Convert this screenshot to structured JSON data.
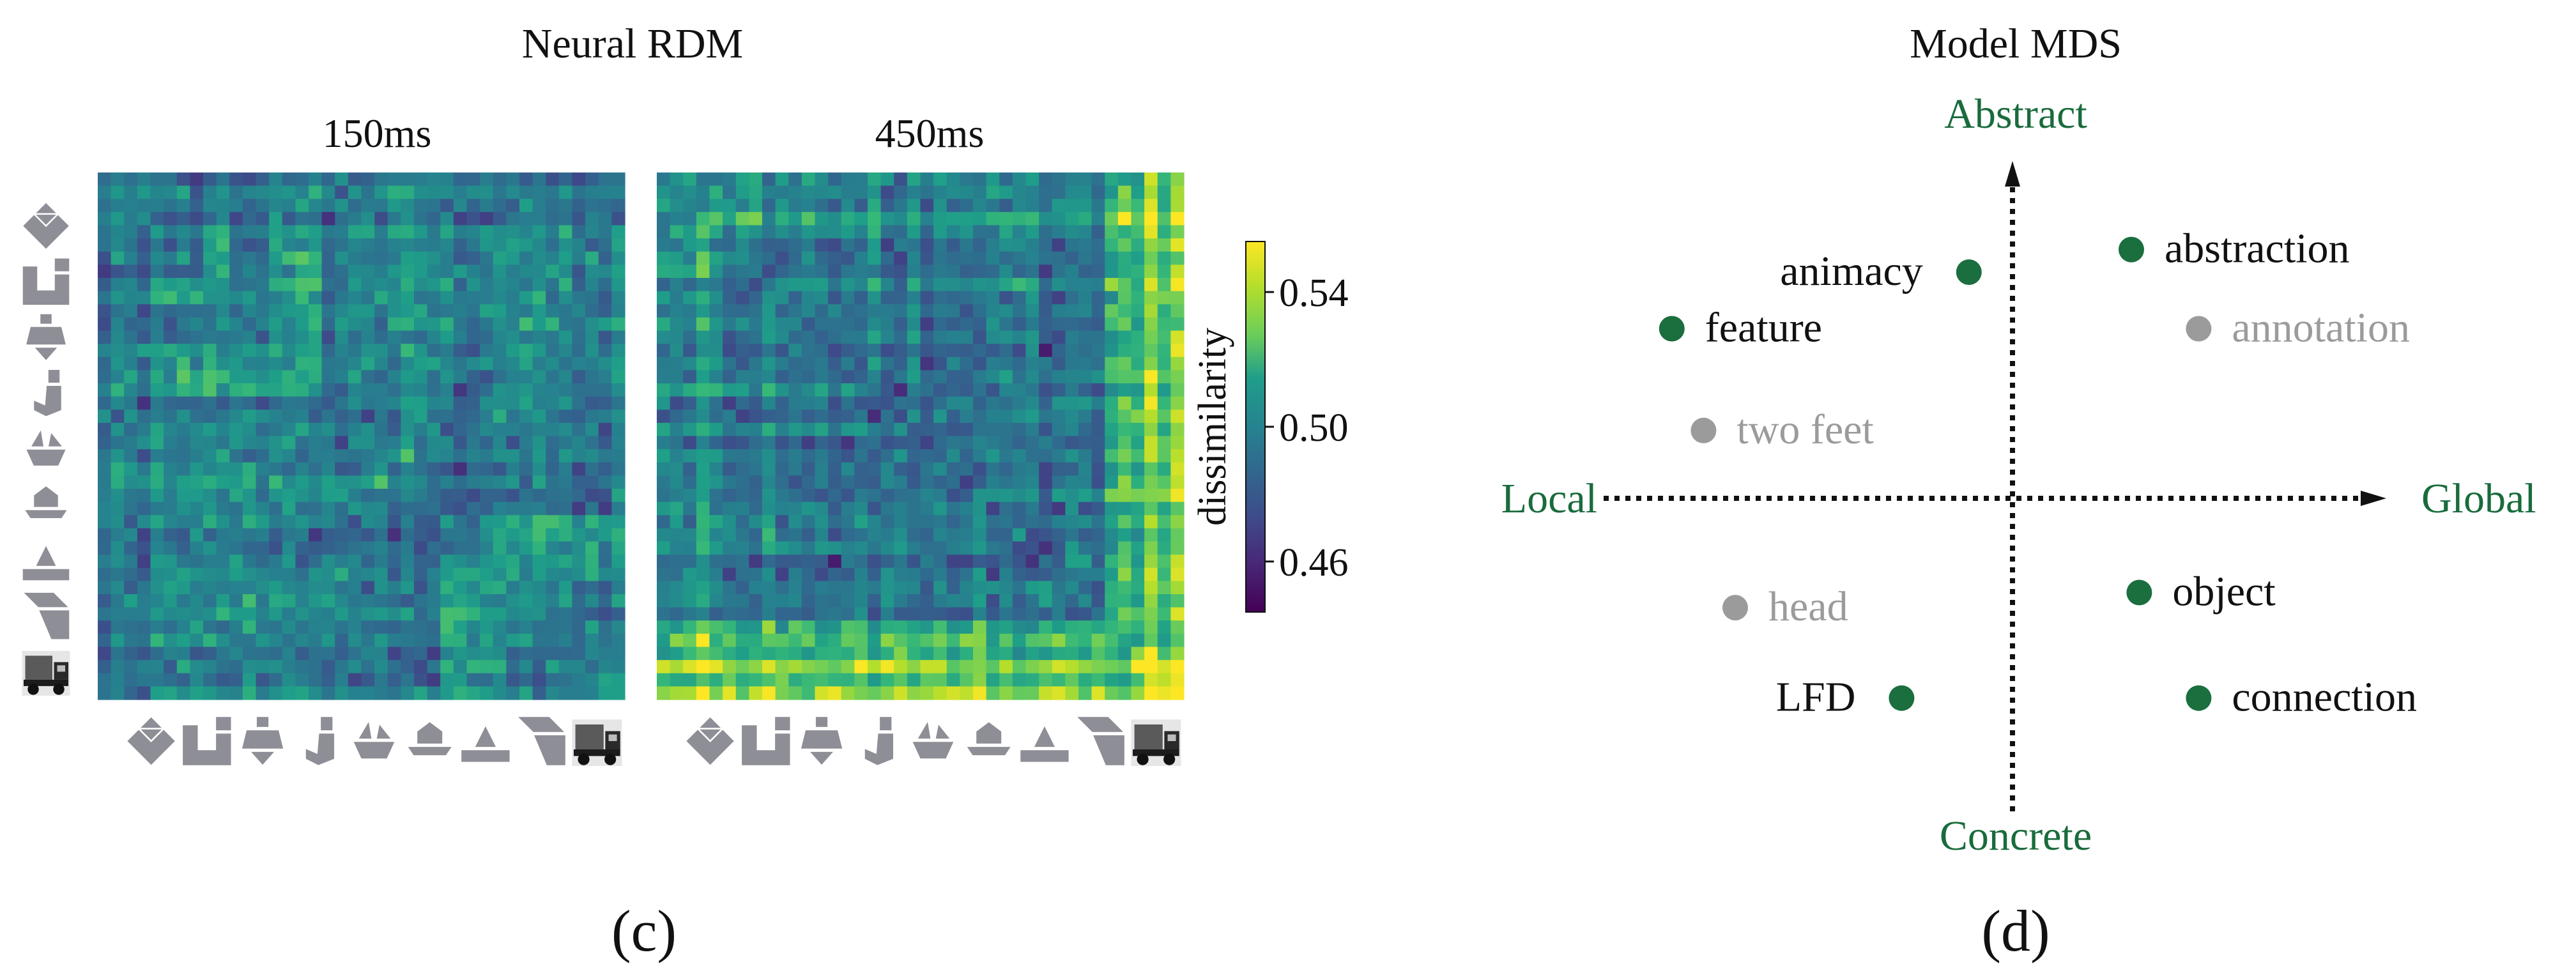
{
  "panel_c": {
    "title": "Neural RDM",
    "caption": "(c)",
    "colorbar": {
      "label": "dissimilarity",
      "ticks": [
        "0.54",
        "0.50",
        "0.46"
      ],
      "tick_values": [
        0.54,
        0.5,
        0.46
      ],
      "range": [
        0.445,
        0.555
      ]
    },
    "stimulus_icons": [
      "tangram-diamond-icon",
      "tangram-hook-icon",
      "tangram-figure-icon",
      "tangram-j-icon",
      "tangram-boat-icon",
      "tangram-dome-icon",
      "tangram-wedge-icon",
      "tangram-z-icon",
      "truck-photo-icon"
    ]
  },
  "panel_d": {
    "title": "Model MDS",
    "caption": "(d)",
    "colors": {
      "accent_green": "#1a6b3c",
      "dot_green": "#1b6e3e",
      "gray": "#9b9b9b",
      "ink": "#111111"
    }
  },
  "chart_data": [
    {
      "type": "heatmap",
      "title": "150ms",
      "colormap": "viridis",
      "rows": 40,
      "cols": 40,
      "value_range": [
        0.45,
        0.55
      ],
      "seed": 7,
      "description_of_pattern": "noisy mid-range dissimilarities, mean about 0.50",
      "mean": 0.5
    },
    {
      "type": "heatmap",
      "title": "450ms",
      "colormap": "viridis",
      "rows": 40,
      "cols": 40,
      "value_range": [
        0.45,
        0.55
      ],
      "seed": 19,
      "mean": 0.5,
      "description_of_pattern": "higher values along bottom rows and right columns"
    },
    {
      "type": "scatter",
      "title": "Model MDS",
      "axes": {
        "x": {
          "negative_label": "Local",
          "positive_label": "Global"
        },
        "y": {
          "negative_label": "Concrete",
          "positive_label": "Abstract"
        }
      },
      "xlim": [
        -1,
        1
      ],
      "ylim": [
        -1,
        1
      ],
      "points": [
        {
          "label": "animacy",
          "x": -0.11,
          "y": 0.6,
          "group": "active",
          "label_side": "left"
        },
        {
          "label": "abstraction",
          "x": 0.3,
          "y": 0.66,
          "group": "active",
          "label_side": "right"
        },
        {
          "label": "feature",
          "x": -0.86,
          "y": 0.45,
          "group": "active",
          "label_side": "right"
        },
        {
          "label": "annotation",
          "x": 0.47,
          "y": 0.45,
          "group": "inactive",
          "label_side": "right"
        },
        {
          "label": "two feet",
          "x": -0.78,
          "y": 0.18,
          "group": "inactive",
          "label_side": "right"
        },
        {
          "label": "head",
          "x": -0.7,
          "y": -0.29,
          "group": "inactive",
          "label_side": "right"
        },
        {
          "label": "object",
          "x": 0.32,
          "y": -0.25,
          "group": "active",
          "label_side": "right"
        },
        {
          "label": "LFD",
          "x": -0.28,
          "y": -0.53,
          "group": "neutral",
          "label_side": "left"
        },
        {
          "label": "connection",
          "x": 0.47,
          "y": -0.53,
          "group": "active",
          "label_side": "right"
        }
      ]
    }
  ]
}
